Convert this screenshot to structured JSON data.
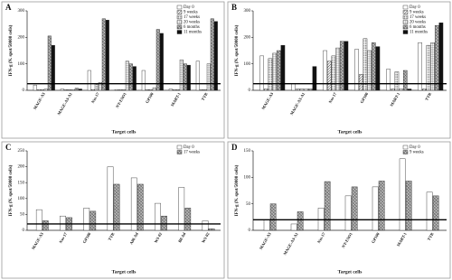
{
  "chart_data": [
    {
      "type": "bar",
      "panel": "A",
      "ylabel": "IFN-g (N. spot/50000 cells)",
      "xlabel": "Target cells",
      "categories": [
        "MAGE-A3",
        "MAGE-A3-A1",
        "Nss-17",
        "NY-ESO1",
        "GP100",
        "MART-1",
        "TYR"
      ],
      "series": [
        {
          "name": "Day 0",
          "color": "#ffffff",
          "pattern": "plain",
          "values": [
            20,
            5,
            75,
            3,
            75,
            5,
            110
          ]
        },
        {
          "name": "9 weeks",
          "color": "#ffffff",
          "pattern": "hatch",
          "values": [
            3,
            3,
            3,
            3,
            3,
            3,
            3
          ]
        },
        {
          "name": "17 weeks",
          "color": "#ffffff",
          "pattern": "dots",
          "values": [
            3,
            3,
            25,
            3,
            3,
            3,
            3
          ]
        },
        {
          "name": "20 weeks",
          "color": "#ffffff",
          "pattern": "grid",
          "values": [
            5,
            3,
            30,
            110,
            10,
            115,
            100
          ]
        },
        {
          "name": "6 months",
          "color": "#ffffff",
          "pattern": "cross",
          "values": [
            205,
            8,
            270,
            100,
            230,
            100,
            270
          ]
        },
        {
          "name": "11 months",
          "color": "#111111",
          "pattern": "solid",
          "values": [
            170,
            5,
            265,
            90,
            215,
            95,
            260
          ]
        }
      ],
      "ylim": [
        0,
        300
      ],
      "yticks": [
        0,
        100,
        200,
        300
      ],
      "threshold": 25
    },
    {
      "type": "bar",
      "panel": "B",
      "ylabel": "IFN-g (N. spot/50000 cells)",
      "xlabel": "Target cells",
      "categories": [
        "MAGE-A3",
        "MAGE-A3-A1",
        "Nss-17",
        "GP100",
        "MART-1",
        "TYR"
      ],
      "series": [
        {
          "name": "Day 0",
          "color": "#ffffff",
          "pattern": "plain",
          "values": [
            130,
            25,
            150,
            155,
            80,
            180
          ]
        },
        {
          "name": "9 weeks",
          "color": "#ffffff",
          "pattern": "hatch",
          "values": [
            5,
            5,
            110,
            60,
            5,
            5
          ]
        },
        {
          "name": "17 weeks",
          "color": "#ffffff",
          "pattern": "dots",
          "values": [
            120,
            5,
            130,
            195,
            70,
            170
          ]
        },
        {
          "name": "20 weeks",
          "color": "#ffffff",
          "pattern": "grid",
          "values": [
            140,
            5,
            160,
            150,
            5,
            180
          ]
        },
        {
          "name": "6 months",
          "color": "#ffffff",
          "pattern": "cross",
          "values": [
            150,
            5,
            185,
            180,
            75,
            245
          ]
        },
        {
          "name": "11 months",
          "color": "#111111",
          "pattern": "solid",
          "values": [
            170,
            90,
            185,
            165,
            5,
            255
          ]
        }
      ],
      "ylim": [
        0,
        300
      ],
      "yticks": [
        0,
        100,
        200,
        300
      ],
      "threshold": 25
    },
    {
      "type": "bar",
      "panel": "C",
      "ylabel": "IFN-g (N. spot/50000 cells)",
      "xlabel": "Target cells",
      "categories": [
        "MAGE-A3",
        "Nss-17",
        "GP100",
        "TYR",
        "A06 Ad",
        "WS 02",
        "B0 Ad",
        "WS 02 "
      ],
      "series": [
        {
          "name": "Day 0",
          "color": "#ffffff",
          "pattern": "plain",
          "values": [
            65,
            45,
            70,
            200,
            165,
            85,
            135,
            30
          ]
        },
        {
          "name": "17 weeks",
          "color": "#ffffff",
          "pattern": "cross",
          "values": [
            30,
            40,
            60,
            145,
            145,
            45,
            70,
            5
          ]
        }
      ],
      "ylim": [
        0,
        250
      ],
      "yticks": [
        0,
        50,
        100,
        150,
        200,
        250
      ],
      "threshold": 20
    },
    {
      "type": "bar",
      "panel": "D",
      "ylabel": "IFN-g (N. spot/50000 cells)",
      "xlabel": "Target cells",
      "categories": [
        "MAGE-A3",
        "MAGE-A3-A1",
        "Nss-17",
        "NY-ESO1",
        "GP100",
        "MART-1",
        "TYR"
      ],
      "series": [
        {
          "name": "Day 0",
          "color": "#ffffff",
          "pattern": "plain",
          "values": [
            20,
            12,
            42,
            65,
            82,
            135,
            72
          ]
        },
        {
          "name": "9 weeks",
          "color": "#ffffff",
          "pattern": "cross",
          "values": [
            50,
            35,
            92,
            82,
            93,
            93,
            65
          ]
        }
      ],
      "ylim": [
        0,
        150
      ],
      "yticks": [
        0,
        50,
        100,
        150
      ],
      "threshold": 20
    }
  ]
}
